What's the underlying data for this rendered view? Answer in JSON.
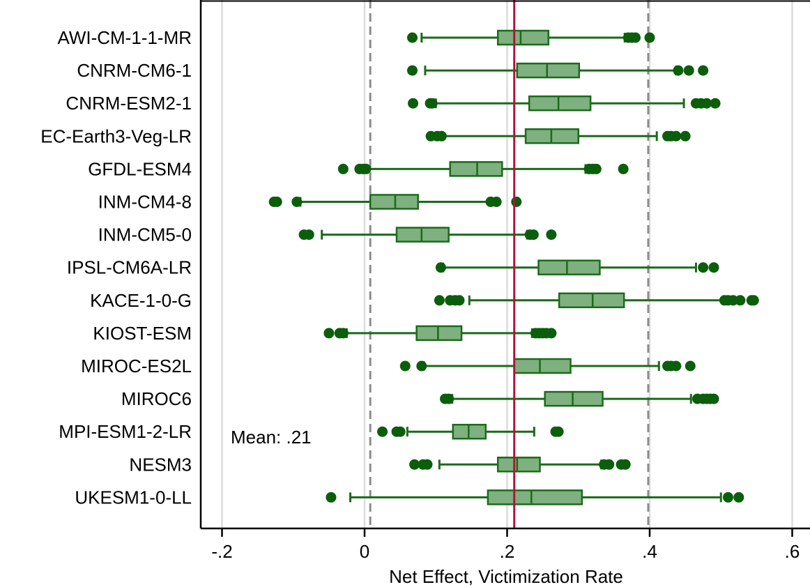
{
  "chart_data": {
    "type": "box",
    "xlabel": "Net Effect, Victimization Rate",
    "xlim": [
      -0.23,
      0.625
    ],
    "xticks": [
      {
        "value": -0.2,
        "label": "-.2"
      },
      {
        "value": 0,
        "label": "0"
      },
      {
        "value": 0.2,
        "label": ".2"
      },
      {
        "value": 0.4,
        "label": ".4"
      },
      {
        "value": 0.6,
        "label": ".6"
      }
    ],
    "grid": true,
    "mean": 0.21,
    "mean_label": "Mean: .21",
    "reference_lines": [
      0.008,
      0.398
    ],
    "colors": {
      "box_fill": "#7fb07f",
      "box_stroke": "#1a6b1a",
      "outlier": "#0b5e0b",
      "mean_line": "#b0143c",
      "ref_line": "#8c8c8c",
      "grid": "#dcdcdc"
    },
    "categories": [
      "AWI-CM-1-1-MR",
      "CNRM-CM6-1",
      "CNRM-ESM2-1",
      "EC-Earth3-Veg-LR",
      "GFDL-ESM4",
      "INM-CM4-8",
      "INM-CM5-0",
      "IPSL-CM6A-LR",
      "KACE-1-0-G",
      "KIOST-ESM",
      "MIROC-ES2L",
      "MIROC6",
      "MPI-ESM1-2-LR",
      "NESM3",
      "UKESM1-0-LL"
    ],
    "boxes": [
      {
        "whisker_low": 0.08,
        "q1": 0.187,
        "median": 0.219,
        "q3": 0.258,
        "whisker_high": 0.365,
        "outliers": [
          0.067,
          0.37,
          0.375,
          0.38,
          0.4
        ]
      },
      {
        "whisker_low": 0.085,
        "q1": 0.214,
        "median": 0.256,
        "q3": 0.301,
        "whisker_high": 0.437,
        "outliers": [
          0.067,
          0.44,
          0.455,
          0.475
        ]
      },
      {
        "whisker_low": 0.1,
        "q1": 0.231,
        "median": 0.272,
        "q3": 0.317,
        "whisker_high": 0.448,
        "outliers": [
          0.068,
          0.092,
          0.095,
          0.465,
          0.472,
          0.48,
          0.492
        ]
      },
      {
        "whisker_low": 0.11,
        "q1": 0.226,
        "median": 0.262,
        "q3": 0.3,
        "whisker_high": 0.41,
        "outliers": [
          0.093,
          0.102,
          0.108,
          0.425,
          0.43,
          0.437,
          0.45
        ]
      },
      {
        "whisker_low": 0.003,
        "q1": 0.12,
        "median": 0.158,
        "q3": 0.193,
        "whisker_high": 0.31,
        "outliers": [
          -0.03,
          -0.007,
          -0.002,
          0.002,
          0.315,
          0.32,
          0.325,
          0.363
        ]
      },
      {
        "whisker_low": -0.09,
        "q1": 0.008,
        "median": 0.043,
        "q3": 0.075,
        "whisker_high": 0.175,
        "outliers": [
          -0.127,
          -0.123,
          -0.095,
          0.177,
          0.185,
          0.213
        ]
      },
      {
        "whisker_low": -0.06,
        "q1": 0.045,
        "median": 0.08,
        "q3": 0.118,
        "whisker_high": 0.228,
        "outliers": [
          -0.085,
          -0.078,
          0.232,
          0.237,
          0.262
        ]
      },
      {
        "whisker_low": 0.11,
        "q1": 0.244,
        "median": 0.284,
        "q3": 0.33,
        "whisker_high": 0.465,
        "outliers": [
          0.107,
          0.475,
          0.49
        ]
      },
      {
        "whisker_low": 0.147,
        "q1": 0.273,
        "median": 0.32,
        "q3": 0.364,
        "whisker_high": 0.503,
        "outliers": [
          0.105,
          0.12,
          0.127,
          0.133,
          0.505,
          0.51,
          0.517,
          0.527,
          0.543,
          0.546
        ]
      },
      {
        "whisker_low": -0.025,
        "q1": 0.073,
        "median": 0.103,
        "q3": 0.136,
        "whisker_high": 0.235,
        "outliers": [
          -0.05,
          -0.035,
          -0.03,
          0.24,
          0.245,
          0.25,
          0.255,
          0.262
        ]
      },
      {
        "whisker_low": 0.083,
        "q1": 0.21,
        "median": 0.246,
        "q3": 0.289,
        "whisker_high": 0.413,
        "outliers": [
          0.057,
          0.08,
          0.425,
          0.43,
          0.437,
          0.457
        ]
      },
      {
        "whisker_low": 0.123,
        "q1": 0.253,
        "median": 0.292,
        "q3": 0.334,
        "whisker_high": 0.458,
        "outliers": [
          0.113,
          0.118,
          0.467,
          0.475,
          0.48,
          0.485,
          0.49
        ]
      },
      {
        "whisker_low": 0.06,
        "q1": 0.124,
        "median": 0.146,
        "q3": 0.17,
        "whisker_high": 0.238,
        "outliers": [
          0.025,
          0.045,
          0.05,
          0.268,
          0.272
        ]
      },
      {
        "whisker_low": 0.105,
        "q1": 0.187,
        "median": 0.214,
        "q3": 0.246,
        "whisker_high": 0.332,
        "outliers": [
          0.07,
          0.082,
          0.088,
          0.336,
          0.343,
          0.36,
          0.366
        ]
      },
      {
        "whisker_low": -0.02,
        "q1": 0.173,
        "median": 0.234,
        "q3": 0.305,
        "whisker_high": 0.5,
        "outliers": [
          -0.047,
          0.51,
          0.525
        ]
      }
    ]
  }
}
